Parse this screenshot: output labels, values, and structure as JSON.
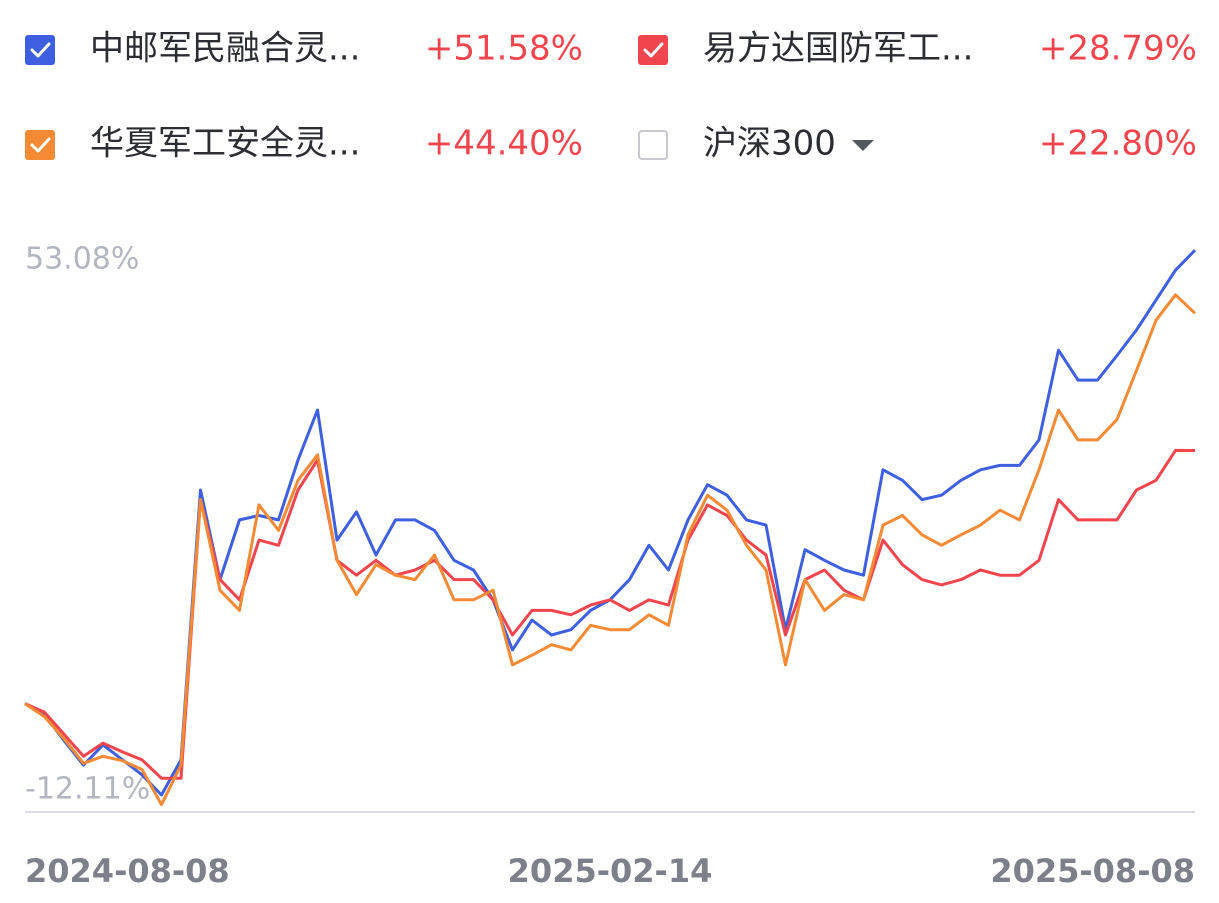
{
  "chart_data": {
    "type": "line",
    "series": [
      {
        "name": "中邮军民融合灵...",
        "color": "#3d5fe0",
        "checked": true,
        "change_label": "+51.58%",
        "values": [
          0,
          -1.3,
          -4.2,
          -7,
          -4.7,
          -6.4,
          -8.1,
          -10.4,
          -6.4,
          24.3,
          14.1,
          20.9,
          21.4,
          20.9,
          27.7,
          33.4,
          18.6,
          21.8,
          16.9,
          20.9,
          20.9,
          19.7,
          16.3,
          15.2,
          11.8,
          6.1,
          9.5,
          7.8,
          8.4,
          10.6,
          11.8,
          14.1,
          18.0,
          15.2,
          20.9,
          24.9,
          23.7,
          20.9,
          20.3,
          8.4,
          17.5,
          16.3,
          15.2,
          14.6,
          26.6,
          25.4,
          23.2,
          23.7,
          25.4,
          26.6,
          27.1,
          27.1,
          30.0,
          40.2,
          36.8,
          36.8,
          39.6,
          42.5,
          45.9,
          49.3,
          51.58
        ]
      },
      {
        "name": "易方达国防军工...",
        "color": "#f0454d",
        "checked": true,
        "change_label": "+28.79%",
        "values": [
          0,
          -1.0,
          -3.5,
          -6.0,
          -4.5,
          -5.5,
          -6.4,
          -8.5,
          -8.5,
          23.2,
          14.1,
          11.8,
          18.6,
          18.0,
          24.3,
          27.7,
          16.3,
          14.6,
          16.3,
          14.6,
          15.2,
          16.3,
          14.1,
          14.1,
          11.8,
          7.8,
          10.6,
          10.6,
          10.1,
          11.2,
          11.8,
          10.6,
          11.8,
          11.2,
          18.6,
          22.6,
          21.4,
          18.6,
          16.9,
          7.8,
          14.1,
          15.2,
          12.9,
          11.8,
          18.6,
          15.8,
          14.1,
          13.5,
          14.1,
          15.2,
          14.6,
          14.6,
          16.3,
          23.2,
          20.9,
          20.9,
          20.9,
          24.3,
          25.4,
          28.8,
          28.79
        ]
      },
      {
        "name": "华夏军工安全灵...",
        "color": "#f58a35",
        "checked": true,
        "change_label": "+44.40%",
        "values": [
          0,
          -1.5,
          -4.0,
          -6.8,
          -6.0,
          -6.5,
          -7.5,
          -11.5,
          -7.0,
          23.2,
          12.9,
          10.6,
          22.6,
          19.7,
          25.4,
          28.3,
          16.3,
          12.4,
          15.8,
          14.6,
          14.1,
          16.9,
          11.8,
          11.8,
          12.9,
          4.4,
          5.5,
          6.7,
          6.1,
          8.9,
          8.4,
          8.4,
          10.1,
          8.9,
          19.2,
          23.7,
          22.0,
          18.0,
          15.2,
          4.4,
          14.1,
          10.6,
          12.4,
          11.8,
          20.3,
          21.4,
          19.2,
          18.0,
          19.2,
          20.3,
          22.0,
          20.9,
          26.6,
          33.4,
          30.0,
          30.0,
          32.3,
          37.9,
          43.6,
          46.5,
          44.4
        ]
      },
      {
        "name": "沪深300",
        "color": "#c8c9cf",
        "checked": false,
        "menu": true,
        "change_label": "+22.80%"
      }
    ],
    "categories": [
      "2024-08-08",
      null,
      null,
      null,
      null,
      null,
      null,
      null,
      null,
      null,
      null,
      null,
      null,
      null,
      null,
      null,
      null,
      null,
      null,
      null,
      null,
      null,
      null,
      null,
      null,
      null,
      null,
      null,
      null,
      null,
      "2025-02-14",
      null,
      null,
      null,
      null,
      null,
      null,
      null,
      null,
      null,
      null,
      null,
      null,
      null,
      null,
      null,
      null,
      null,
      null,
      null,
      null,
      null,
      null,
      null,
      null,
      null,
      null,
      null,
      null,
      null,
      "2025-08-08"
    ],
    "ylim": [
      -12.11,
      53.08
    ],
    "yticks": [
      {
        "value": -12.11,
        "label": "-12.11%"
      },
      {
        "value": 53.08,
        "label": "53.08%"
      }
    ],
    "grid": false
  }
}
